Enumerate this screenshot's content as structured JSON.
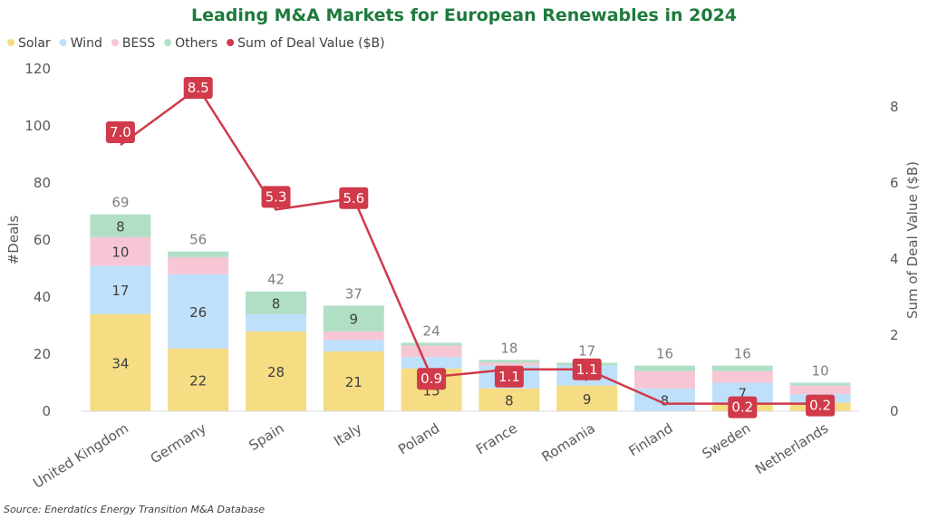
{
  "chart_data": {
    "type": "bar",
    "stacked": true,
    "title": "Leading M&A Markets for European Renewables in 2024",
    "categories": [
      "United Kingdom",
      "Germany",
      "Spain",
      "Italy",
      "Poland",
      "France",
      "Romania",
      "Finland",
      "Sweden",
      "Netherlands"
    ],
    "series": [
      {
        "name": "Solar",
        "color": "#f6dc83",
        "values": [
          34,
          22,
          28,
          21,
          15,
          8,
          9,
          0,
          3,
          3
        ],
        "labels": [
          "34",
          "22",
          "28",
          "21",
          "15",
          "8",
          "9",
          "",
          "",
          ""
        ]
      },
      {
        "name": "Wind",
        "color": "#bfe0fb",
        "values": [
          17,
          26,
          6,
          4,
          4,
          8,
          7,
          8,
          7,
          3
        ],
        "labels": [
          "17",
          "26",
          "",
          "",
          "",
          "8",
          "7",
          "8",
          "7",
          ""
        ]
      },
      {
        "name": "BESS",
        "color": "#f7c6d4",
        "values": [
          10,
          6,
          0,
          3,
          4,
          1,
          0,
          6,
          4,
          3
        ],
        "labels": [
          "10",
          "",
          "",
          "",
          "",
          "",
          "",
          "",
          "",
          ""
        ]
      },
      {
        "name": "Others",
        "color": "#b0dfc6",
        "values": [
          8,
          2,
          8,
          9,
          1,
          1,
          1,
          2,
          2,
          1
        ],
        "labels": [
          "8",
          "",
          "8",
          "9",
          "",
          "",
          "",
          "",
          "",
          ""
        ]
      }
    ],
    "totals": [
      69,
      56,
      42,
      37,
      24,
      18,
      17,
      16,
      16,
      10
    ],
    "line": {
      "name": "Sum of Deal Value ($B)",
      "color": "#d03a4a",
      "values": [
        7.0,
        8.5,
        5.3,
        5.6,
        0.9,
        1.1,
        1.1,
        0.2,
        0.2,
        0.2
      ],
      "labels": [
        "7.0",
        "8.5",
        "5.3",
        "5.6",
        "0.9",
        "1.1",
        "1.1",
        "",
        "0.2",
        "0.2"
      ]
    },
    "ylabel": "#Deals",
    "y2label": "Sum of Deal Value ($B)",
    "ylim": [
      0,
      120
    ],
    "y2lim": [
      0,
      9
    ],
    "yticks": [
      0,
      20,
      40,
      60,
      80,
      100,
      120
    ],
    "y2ticks": [
      0,
      2,
      4,
      6,
      8
    ],
    "grid": false,
    "legend_position": "top-left"
  },
  "source": "Source: Enerdatics Energy Transition M&A Database"
}
